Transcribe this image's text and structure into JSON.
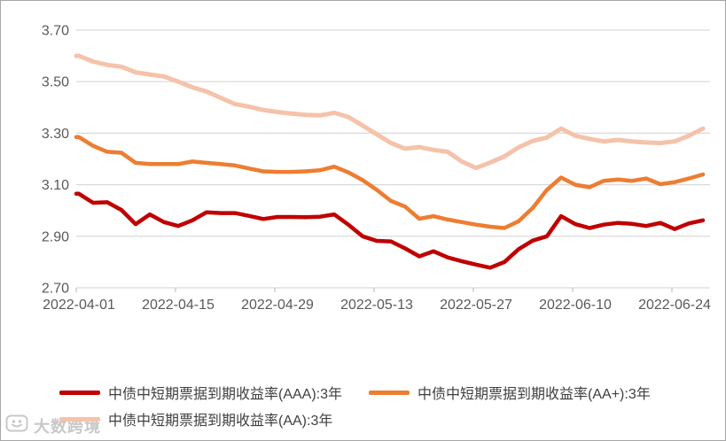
{
  "chart_data": {
    "type": "line",
    "title": "",
    "x_axis": {
      "tick_labels": [
        "2022-04-01",
        "2022-04-15",
        "2022-04-29",
        "2022-05-13",
        "2022-05-27",
        "2022-06-10",
        "2022-06-24"
      ],
      "tick_days": [
        0,
        14,
        28,
        42,
        56,
        70,
        84
      ],
      "day_range": [
        0,
        88
      ],
      "sample_step_days": 2
    },
    "y_axis": {
      "tick_labels": [
        "3.70",
        "3.50",
        "3.30",
        "3.10",
        "2.90",
        "2.70"
      ],
      "ticks": [
        3.7,
        3.5,
        3.3,
        3.1,
        2.9,
        2.7
      ],
      "range": [
        2.7,
        3.7
      ]
    },
    "grid": "horizontal",
    "legend_position": "bottom",
    "series": [
      {
        "id": "aaa",
        "name": "中债中短期票据到期收益率(AAA):3年",
        "color": "#c00000",
        "stroke_width": 4.5,
        "values": [
          3.065,
          3.03,
          3.032,
          3.002,
          2.947,
          2.985,
          2.955,
          2.94,
          2.962,
          2.993,
          2.99,
          2.99,
          2.979,
          2.967,
          2.975,
          2.975,
          2.974,
          2.976,
          2.985,
          2.945,
          2.9,
          2.882,
          2.88,
          2.853,
          2.822,
          2.842,
          2.818,
          2.803,
          2.79,
          2.778,
          2.8,
          2.85,
          2.883,
          2.9,
          2.978,
          2.947,
          2.932,
          2.945,
          2.952,
          2.948,
          2.94,
          2.952,
          2.928,
          2.95,
          2.962
        ]
      },
      {
        "id": "aa-plus",
        "name": "中债中短期票据到期收益率(AA+):3年",
        "color": "#ed7d31",
        "stroke_width": 4.5,
        "values": [
          3.285,
          3.251,
          3.228,
          3.224,
          3.185,
          3.18,
          3.18,
          3.18,
          3.19,
          3.185,
          3.18,
          3.175,
          3.163,
          3.152,
          3.15,
          3.15,
          3.152,
          3.156,
          3.17,
          3.148,
          3.118,
          3.08,
          3.037,
          3.015,
          2.968,
          2.978,
          2.965,
          2.955,
          2.945,
          2.937,
          2.932,
          2.958,
          3.01,
          3.08,
          3.128,
          3.1,
          3.09,
          3.115,
          3.12,
          3.115,
          3.124,
          3.102,
          3.11,
          3.124,
          3.14
        ]
      },
      {
        "id": "aa",
        "name": "中债中短期票据到期收益率(AA):3年",
        "color": "#f5c2aa",
        "stroke_width": 5,
        "values": [
          3.6,
          3.578,
          3.565,
          3.558,
          3.536,
          3.528,
          3.52,
          3.5,
          3.478,
          3.462,
          3.437,
          3.413,
          3.403,
          3.39,
          3.382,
          3.376,
          3.371,
          3.369,
          3.379,
          3.363,
          3.33,
          3.296,
          3.262,
          3.24,
          3.246,
          3.235,
          3.228,
          3.19,
          3.165,
          3.186,
          3.21,
          3.245,
          3.27,
          3.283,
          3.318,
          3.29,
          3.278,
          3.268,
          3.274,
          3.268,
          3.264,
          3.262,
          3.268,
          3.29,
          3.318
        ]
      }
    ]
  },
  "watermark": {
    "text": "大数跨境",
    "icon": "smiley-logo"
  },
  "styles": {
    "background": "#ffffff",
    "border_color": "#a6a6a6",
    "gridline_color": "#d9d9d9",
    "tick_color": "#c0c0c0",
    "axis_text_color": "#595959",
    "legend_text_color": "#3f3f3f",
    "watermark_color": "#c8c8c8"
  }
}
